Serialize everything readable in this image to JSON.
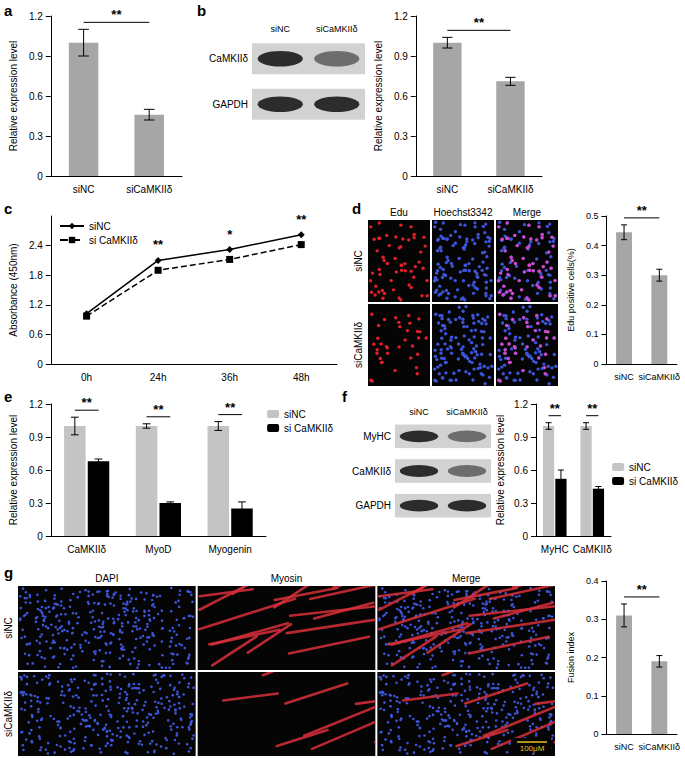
{
  "chart_data": [
    {
      "type": "bar",
      "ylabel": "Relative expression level",
      "categories": [
        "siNC",
        "siCaMKIIδ"
      ],
      "values": [
        1.0,
        0.46
      ],
      "errors": [
        0.1,
        0.04
      ],
      "color": "#a6a6a6",
      "ylim": [
        0,
        1.2
      ],
      "yticks": [
        0,
        0.3,
        0.6,
        0.9,
        1.2
      ],
      "grid": false,
      "annotations": [
        {
          "text": "**",
          "between": [
            "siNC",
            "siCaMKIIδ"
          ]
        }
      ]
    },
    {
      "type": "bar",
      "ylabel": "Relative expression level",
      "categories": [
        "siNC",
        "siCaMKIIδ"
      ],
      "values": [
        1.0,
        0.71
      ],
      "errors": [
        0.04,
        0.03
      ],
      "color": "#a6a6a6",
      "ylim": [
        0,
        1.2
      ],
      "yticks": [
        0,
        0.3,
        0.6,
        0.9,
        1.2
      ],
      "grid": false,
      "annotations": [
        {
          "text": "**",
          "between": [
            "siNC",
            "siCaMKIIδ"
          ]
        }
      ]
    },
    {
      "type": "line",
      "ylabel": "Absorbance (450nm)",
      "categories": [
        "0h",
        "24h",
        "36h",
        "48h"
      ],
      "series": [
        {
          "name": "siNC",
          "color": "#000000",
          "values": [
            1.02,
            2.1,
            2.32,
            2.62
          ],
          "marker": "diamond",
          "line_style": "solid"
        },
        {
          "name": "si CaMKIIδ",
          "color": "#000000",
          "values": [
            0.97,
            1.9,
            2.12,
            2.42
          ],
          "marker": "square",
          "line_style": "dashed"
        }
      ],
      "ylim": [
        0,
        3.0
      ],
      "yticks": [
        0,
        0.6,
        1.2,
        1.8,
        2.4
      ],
      "grid": false,
      "legend": "upper left",
      "annotations": [
        {
          "text": "**",
          "category": "24h"
        },
        {
          "text": "*",
          "category": "36h"
        },
        {
          "text": "**",
          "category": "48h"
        }
      ]
    },
    {
      "type": "bar",
      "ylabel": "Edu positive cells(%)",
      "categories": [
        "siNC",
        "siCaMKIIδ"
      ],
      "values": [
        0.445,
        0.3
      ],
      "errors": [
        0.025,
        0.02
      ],
      "color": "#a6a6a6",
      "ylim": [
        0,
        0.5
      ],
      "yticks": [
        0,
        0.1,
        0.2,
        0.3,
        0.4,
        0.5
      ],
      "grid": false,
      "annotations": [
        {
          "text": "**",
          "between": [
            "siNC",
            "siCaMKIIδ"
          ]
        }
      ]
    },
    {
      "type": "bar",
      "ylabel": "Relative expression level",
      "categories": [
        "CaMKIIδ",
        "MyoD",
        "Myogenin"
      ],
      "series": [
        {
          "name": "siNC",
          "color": "#c4c4c4",
          "values": [
            1.0,
            1.0,
            1.0
          ],
          "errors": [
            0.08,
            0.02,
            0.04
          ]
        },
        {
          "name": "si CaMKIIδ",
          "color": "#000000",
          "values": [
            0.68,
            0.3,
            0.25
          ],
          "errors": [
            0.02,
            0.01,
            0.06
          ]
        }
      ],
      "ylim": [
        0,
        1.2
      ],
      "yticks": [
        0,
        0.3,
        0.6,
        0.9,
        1.2
      ],
      "grid": false,
      "legend": "upper right",
      "annotations": [
        {
          "text": "**",
          "category": "CaMKIIδ"
        },
        {
          "text": "**",
          "category": "MyoD"
        },
        {
          "text": "**",
          "category": "Myogenin"
        }
      ]
    },
    {
      "type": "bar",
      "ylabel": "Relative expression level",
      "categories": [
        "MyHC",
        "CaMKIIδ"
      ],
      "series": [
        {
          "name": "siNC",
          "color": "#c4c4c4",
          "values": [
            1.0,
            1.0
          ],
          "errors": [
            0.03,
            0.03
          ]
        },
        {
          "name": "si CaMKIIδ",
          "color": "#000000",
          "values": [
            0.52,
            0.43
          ],
          "errors": [
            0.08,
            0.02
          ]
        }
      ],
      "ylim": [
        0,
        1.2
      ],
      "yticks": [
        0,
        0.3,
        0.6,
        0.9,
        1.2
      ],
      "grid": false,
      "legend": "right",
      "annotations": [
        {
          "text": "**",
          "category": "MyHC"
        },
        {
          "text": "**",
          "category": "CaMKIIδ"
        }
      ]
    },
    {
      "type": "bar",
      "ylabel": "Fusion index",
      "categories": [
        "siNC",
        "siCaMKIIδ"
      ],
      "values": [
        0.31,
        0.19
      ],
      "errors": [
        0.03,
        0.015
      ],
      "color": "#a6a6a6",
      "ylim": [
        0,
        0.4
      ],
      "yticks": [
        0,
        0.1,
        0.2,
        0.3,
        0.4
      ],
      "grid": false,
      "annotations": [
        {
          "text": "**",
          "between": [
            "siNC",
            "siCaMKIIδ"
          ]
        }
      ]
    }
  ],
  "figure": {
    "panels": [
      {
        "label": "a"
      },
      {
        "label": "b",
        "blot": {
          "columns": [
            "siNC",
            "siCaMKIIδ"
          ],
          "rows": [
            "CaMKIIδ",
            "GAPDH"
          ]
        }
      },
      {
        "label": "c"
      },
      {
        "label": "d",
        "micrograph": {
          "columns": [
            "Edu",
            "Hoechst3342",
            "Merge"
          ],
          "rows": [
            "siNC",
            "siCaMKIIδ"
          ]
        }
      },
      {
        "label": "e"
      },
      {
        "label": "f",
        "blot": {
          "columns": [
            "siNC",
            "siCaMKIIδ"
          ],
          "rows": [
            "MyHC",
            "CaMKIIδ",
            "GAPDH"
          ]
        }
      },
      {
        "label": "g",
        "micrograph": {
          "columns": [
            "DAPI",
            "Myosin",
            "Merge"
          ],
          "rows": [
            "siNC",
            "siCaMKIIδ"
          ],
          "scale_bar": "100μM"
        }
      }
    ]
  }
}
